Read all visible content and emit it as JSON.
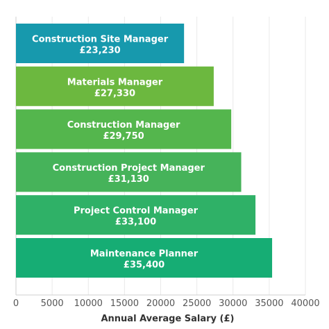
{
  "chart_data": {
    "type": "bar",
    "orientation": "horizontal",
    "title": "",
    "xlabel": "Annual Average Salary (£)",
    "ylabel": "",
    "xlim": [
      0,
      40000
    ],
    "xticks": [
      0,
      5000,
      10000,
      15000,
      20000,
      25000,
      30000,
      35000,
      40000
    ],
    "grid": true,
    "categories": [
      "Construction Site Manager",
      "Materials Manager",
      "Construction Manager",
      "Construction Project Manager",
      "Project Control Manager",
      "Maintenance Planner"
    ],
    "values": [
      23230,
      27330,
      29750,
      31130,
      33100,
      35400
    ],
    "value_labels": [
      "£23,230",
      "£27,330",
      "£29,750",
      "£31,130",
      "£33,100",
      "£35,400"
    ],
    "colors": [
      "#1799ad",
      "#6cb83f",
      "#54b64d",
      "#46b35a",
      "#2fb167",
      "#16ad74"
    ]
  }
}
